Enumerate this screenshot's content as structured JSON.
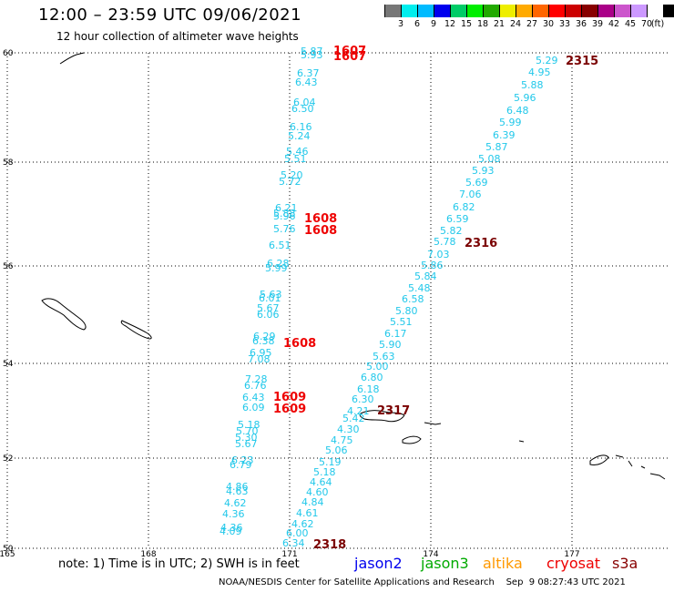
{
  "header": {
    "title": "12:00 – 23:59 UTC 09/06/2021",
    "subtitle": "12 hour collection of altimeter wave heights"
  },
  "legend": {
    "unit": "(ft)",
    "colors": [
      "#777777",
      "#00eeee",
      "#00bbff",
      "#0000ee",
      "#00cc66",
      "#00ee00",
      "#22aa00",
      "#eeee00",
      "#ffaa00",
      "#ff6600",
      "#ff0000",
      "#cc0000",
      "#880000",
      "#aa0088",
      "#cc55cc",
      "#cc99ff",
      "#ffffff",
      "#000000"
    ],
    "labels": [
      "3",
      "6",
      "9",
      "12",
      "15",
      "18",
      "21",
      "24",
      "27",
      "30",
      "33",
      "36",
      "39",
      "42",
      "45",
      "70"
    ]
  },
  "axes": {
    "lat_labels": [
      "60",
      "58",
      "56",
      "54",
      "52",
      "50"
    ],
    "lon_labels": [
      "165",
      "168",
      "171",
      "174",
      "177"
    ]
  },
  "tracks": [
    {
      "name": "west",
      "points": [
        {
          "t": "5.87",
          "h": "5.87"
        },
        {
          "t": "5.93",
          "h": "5.93"
        },
        {
          "t": "6.37",
          "h": "6.37"
        },
        {
          "t": "6.43",
          "h": "6.43"
        },
        {
          "t": "6.04",
          "h": "6.04"
        },
        {
          "t": "6.50",
          "h": "6.50"
        },
        {
          "t": "6.16",
          "h": "6.16"
        },
        {
          "t": "5.24",
          "h": "5.24"
        },
        {
          "t": "5.46",
          "h": "5.46"
        },
        {
          "t": "5.51",
          "h": "5.51"
        },
        {
          "t": "5.20",
          "h": "5.20"
        },
        {
          "t": "5.72",
          "h": "5.72"
        },
        {
          "t": "6.21",
          "h": "6.21"
        },
        {
          "t": "5.88",
          "h": "5.88"
        },
        {
          "t": "5.96",
          "h": "5.96"
        },
        {
          "t": "5.76",
          "h": "5.76"
        },
        {
          "t": "6.51",
          "h": "6.51"
        },
        {
          "t": "6.28",
          "h": "6.28"
        },
        {
          "t": "5.99",
          "h": "5.99"
        },
        {
          "t": "5.63",
          "h": "5.63"
        },
        {
          "t": "6.01",
          "h": "6.01"
        },
        {
          "t": "5.67",
          "h": "5.67"
        },
        {
          "t": "6.06",
          "h": "6.06"
        },
        {
          "t": "6.29",
          "h": "6.29"
        },
        {
          "t": "6.38",
          "h": "6.38"
        },
        {
          "t": "6.95",
          "h": "6.95"
        },
        {
          "t": "7.08",
          "h": "7.08"
        },
        {
          "t": "7.28",
          "h": "7.28"
        },
        {
          "t": "6.76",
          "h": "6.76"
        },
        {
          "t": "6.43",
          "h": "6.43"
        },
        {
          "t": "6.09",
          "h": "6.09"
        },
        {
          "t": "5.18",
          "h": "5.18"
        },
        {
          "t": "5.70",
          "h": "5.70"
        },
        {
          "t": "5.30",
          "h": "5.30"
        },
        {
          "t": "5.67",
          "h": "5.67"
        },
        {
          "t": "6.23",
          "h": "6.23"
        },
        {
          "t": "6.79",
          "h": "6.79"
        },
        {
          "t": "4.86",
          "h": "4.86"
        },
        {
          "t": "4.63",
          "h": "4.63"
        },
        {
          "t": "4.62",
          "h": "4.62"
        },
        {
          "t": "4.36",
          "h": "4.36"
        },
        {
          "t": "4.36",
          "h": "4.36"
        },
        {
          "t": "4.09",
          "h": "4.09"
        }
      ]
    },
    {
      "name": "east",
      "points": [
        {
          "t": "5.29"
        },
        {
          "t": "4.95"
        },
        {
          "t": "5.88"
        },
        {
          "t": "5.96"
        },
        {
          "t": "6.48"
        },
        {
          "t": "5.99"
        },
        {
          "t": "6.39"
        },
        {
          "t": "5.87"
        },
        {
          "t": "5.08"
        },
        {
          "t": "5.93"
        },
        {
          "t": "5.69"
        },
        {
          "t": "7.06"
        },
        {
          "t": "6.82"
        },
        {
          "t": "6.59"
        },
        {
          "t": "5.82"
        },
        {
          "t": "5.78"
        },
        {
          "t": "7.03"
        },
        {
          "t": "5.86"
        },
        {
          "t": "5.84"
        },
        {
          "t": "5.48"
        },
        {
          "t": "6.58"
        },
        {
          "t": "5.80"
        },
        {
          "t": "5.51"
        },
        {
          "t": "6.17"
        },
        {
          "t": "5.90"
        },
        {
          "t": "5.63"
        },
        {
          "t": "5.00"
        },
        {
          "t": "6.80"
        },
        {
          "t": "6.18"
        },
        {
          "t": "6.30"
        },
        {
          "t": "4.21"
        },
        {
          "t": "5.42"
        },
        {
          "t": "4.30"
        },
        {
          "t": "4.75"
        },
        {
          "t": "5.06"
        },
        {
          "t": "5.19"
        },
        {
          "t": "5.18"
        },
        {
          "t": "4.64"
        },
        {
          "t": "4.60"
        },
        {
          "t": "4.84"
        },
        {
          "t": "4.61"
        },
        {
          "t": "4.62"
        },
        {
          "t": "6.00"
        },
        {
          "t": "6.34"
        }
      ]
    }
  ],
  "time_labels": [
    {
      "text": "1607",
      "cls": "hr-red"
    },
    {
      "text": "1607",
      "cls": "hr-red"
    },
    {
      "text": "1608",
      "cls": "hr-red"
    },
    {
      "text": "1608",
      "cls": "hr-red"
    },
    {
      "text": "1608",
      "cls": "hr-red"
    },
    {
      "text": "1609",
      "cls": "hr-red"
    },
    {
      "text": "1609",
      "cls": "hr-red"
    },
    {
      "text": "2315",
      "cls": "hr-dark"
    },
    {
      "text": "2316",
      "cls": "hr-dark"
    },
    {
      "text": "2317",
      "cls": "hr-dark"
    },
    {
      "text": "2318",
      "cls": "hr-dark"
    }
  ],
  "note": "note:  1) Time is in UTC;  2) SWH is in feet",
  "satellites": [
    {
      "name": "jason2",
      "color": "#0000ee"
    },
    {
      "name": "jason3",
      "color": "#00aa00"
    },
    {
      "name": "altika",
      "color": "#ff9900"
    },
    {
      "name": "cryosat",
      "color": "#ee0000"
    },
    {
      "name": "s3a",
      "color": "#880000"
    }
  ],
  "footer": "NOAA/NESDIS Center for Satellite Applications and Research    Sep  9 08:27:43 UTC 2021"
}
